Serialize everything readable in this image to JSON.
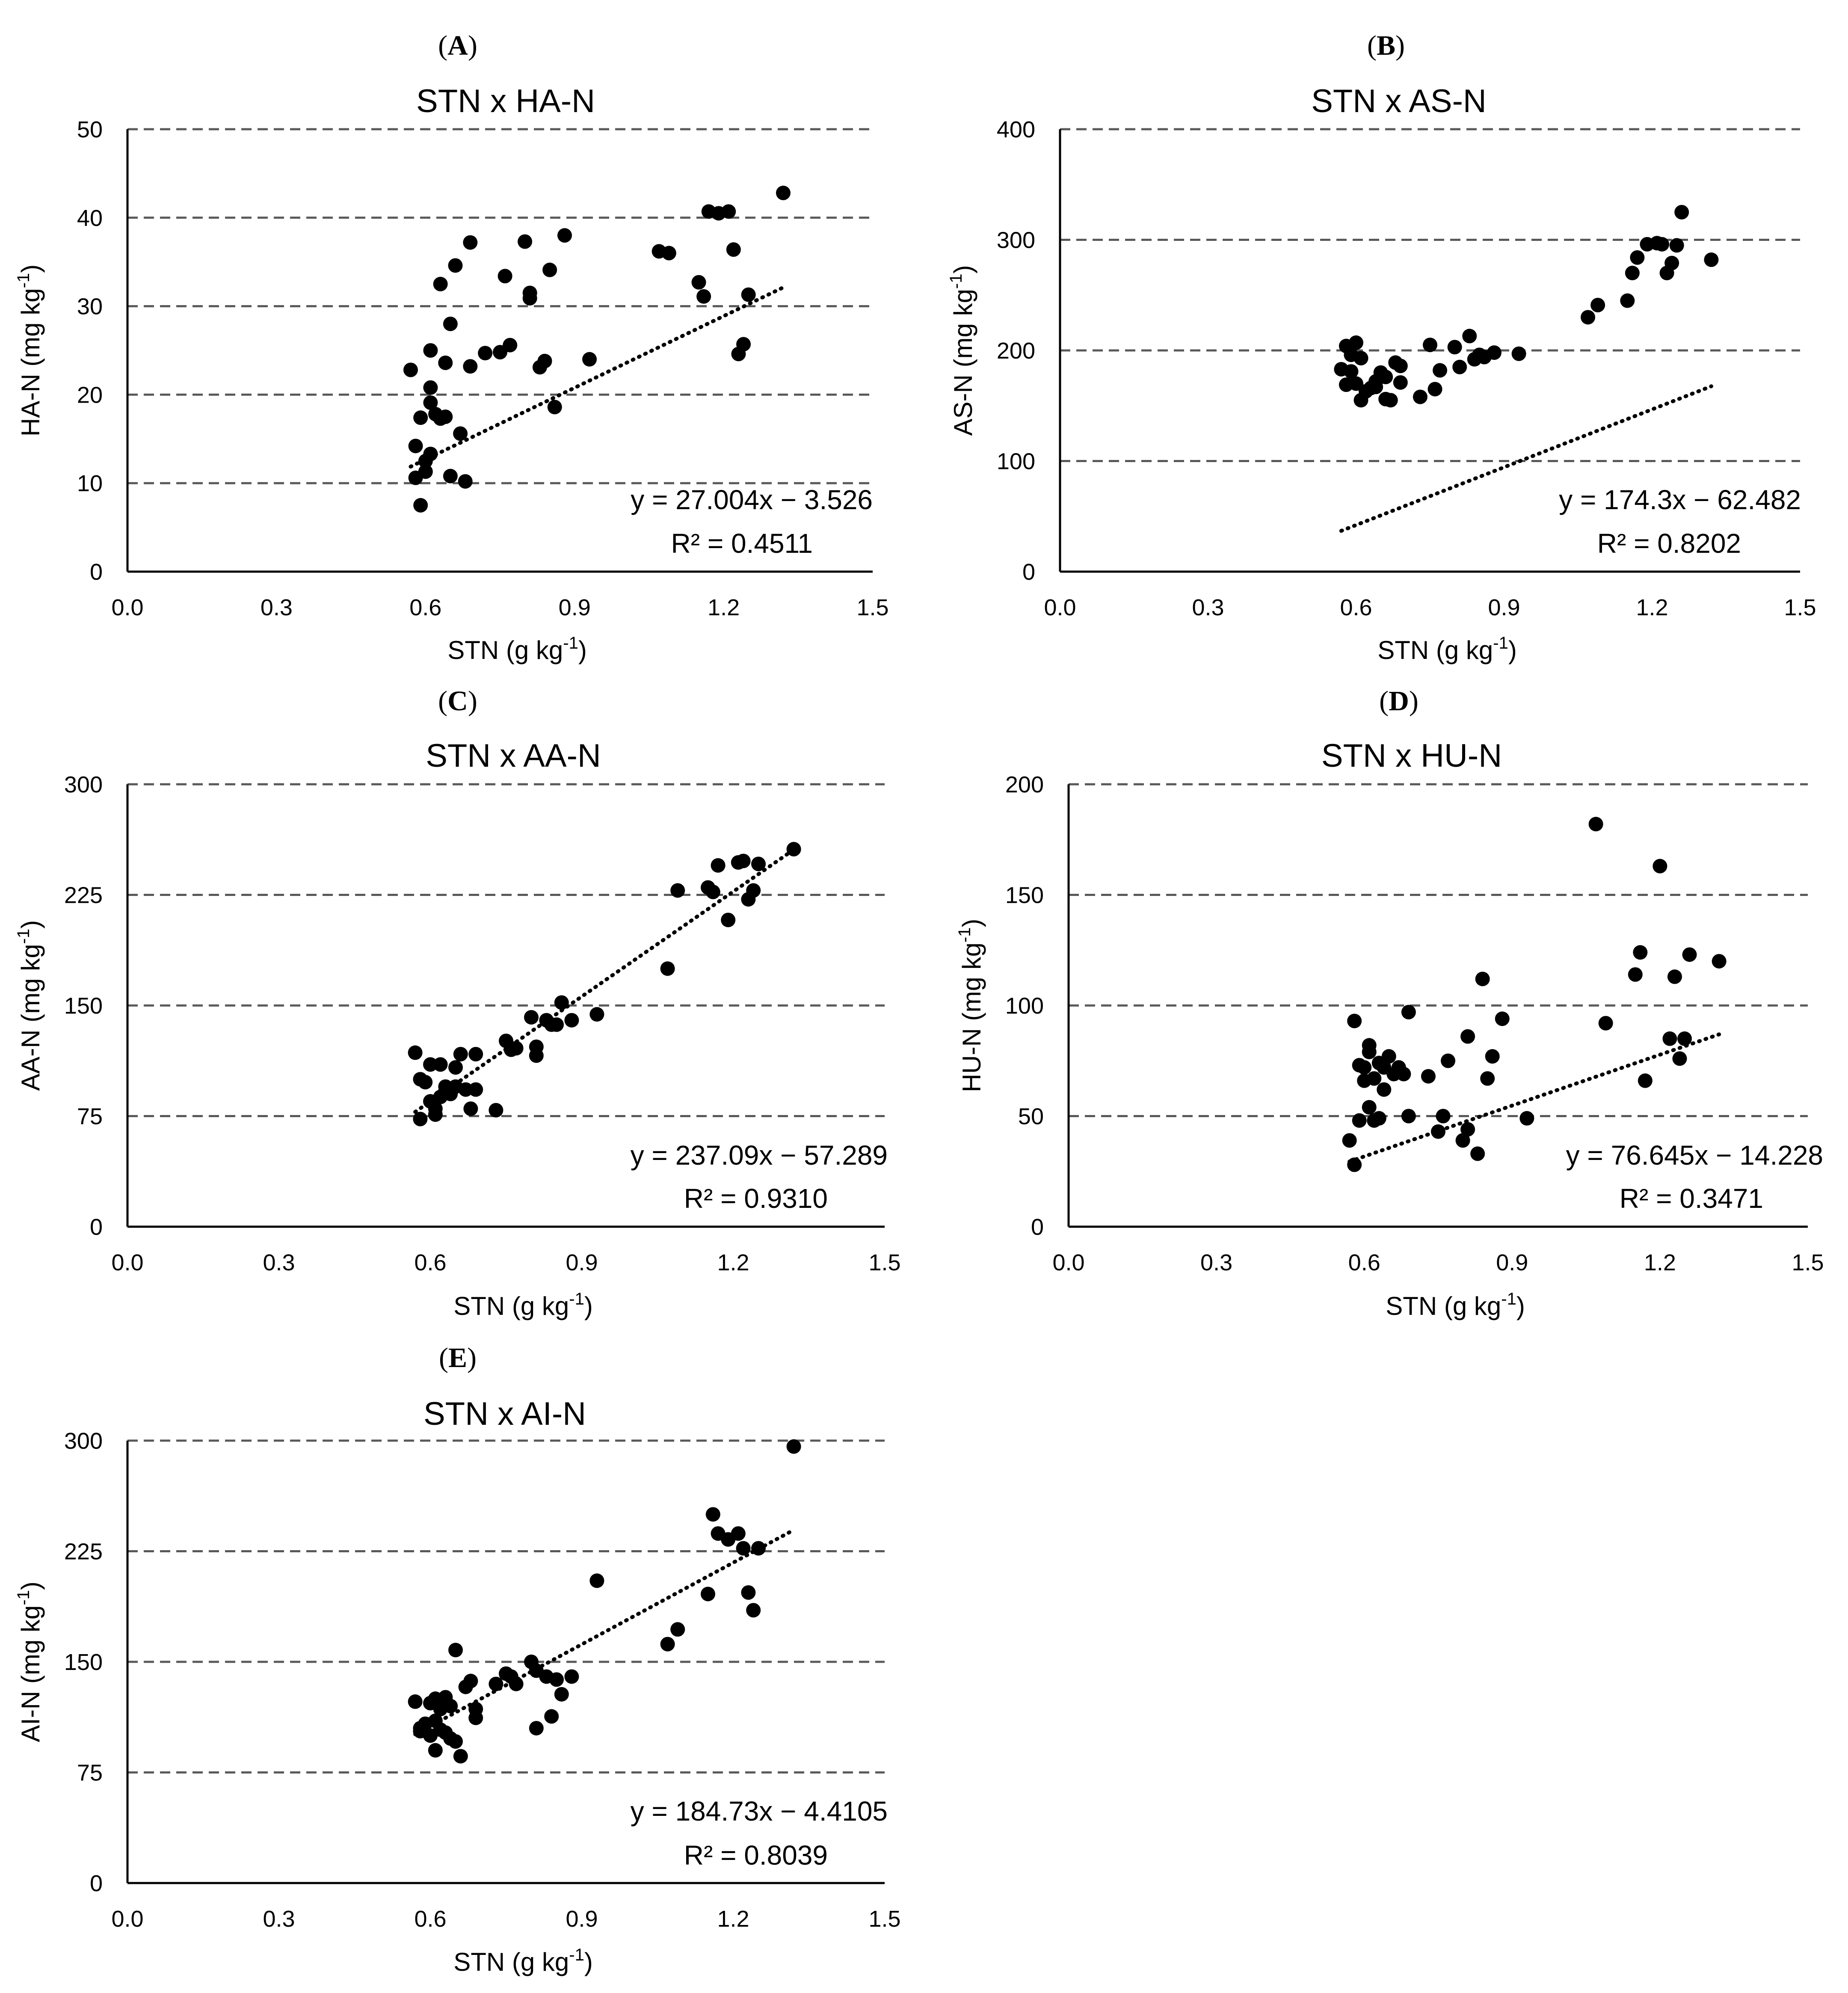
{
  "chart_data": [
    {
      "panel": "A",
      "type": "scatter",
      "title": "STN x HA-N",
      "xlabel": "STN (g kg",
      "xlabel_sup": "-1",
      "ylabel": "HA-N (mg kg",
      "ylabel_sup": "-1",
      "xlim": [
        0,
        1.5
      ],
      "ylim": [
        0,
        50
      ],
      "xticks": [
        "0.0",
        "0.3",
        "0.6",
        "0.9",
        "1.2",
        "1.5"
      ],
      "yticks": [
        "0",
        "10",
        "20",
        "30",
        "40",
        "50"
      ],
      "grid": true,
      "trendline": {
        "type": "linear",
        "slope": 27.004,
        "intercept": -3.526,
        "x_range": [
          0.57,
          1.32
        ]
      },
      "equation": "y = 27.004x − 3.526",
      "r2": "R² = 0.4511",
      "points": [
        [
          0.57,
          22.8
        ],
        [
          0.58,
          14.2
        ],
        [
          0.58,
          10.6
        ],
        [
          0.59,
          17.4
        ],
        [
          0.59,
          7.5
        ],
        [
          0.6,
          12.5
        ],
        [
          0.6,
          11.3
        ],
        [
          0.61,
          13.3
        ],
        [
          0.61,
          25.0
        ],
        [
          0.61,
          20.8
        ],
        [
          0.61,
          19.1
        ],
        [
          0.62,
          17.8
        ],
        [
          0.63,
          32.5
        ],
        [
          0.63,
          17.3
        ],
        [
          0.64,
          17.5
        ],
        [
          0.64,
          23.6
        ],
        [
          0.65,
          28.0
        ],
        [
          0.65,
          10.8
        ],
        [
          0.66,
          34.6
        ],
        [
          0.67,
          15.6
        ],
        [
          0.68,
          10.2
        ],
        [
          0.69,
          37.2
        ],
        [
          0.69,
          23.2
        ],
        [
          0.72,
          24.7
        ],
        [
          0.75,
          24.8
        ],
        [
          0.76,
          33.4
        ],
        [
          0.77,
          25.6
        ],
        [
          0.8,
          37.3
        ],
        [
          0.81,
          31.5
        ],
        [
          0.81,
          30.9
        ],
        [
          0.83,
          23.1
        ],
        [
          0.84,
          23.8
        ],
        [
          0.85,
          34.1
        ],
        [
          0.86,
          18.6
        ],
        [
          0.88,
          38.0
        ],
        [
          0.93,
          24.0
        ],
        [
          1.07,
          36.2
        ],
        [
          1.09,
          36.0
        ],
        [
          1.15,
          32.7
        ],
        [
          1.16,
          31.1
        ],
        [
          1.17,
          40.7
        ],
        [
          1.19,
          40.5
        ],
        [
          1.21,
          40.7
        ],
        [
          1.22,
          36.4
        ],
        [
          1.23,
          24.6
        ],
        [
          1.24,
          25.7
        ],
        [
          1.25,
          31.3
        ],
        [
          1.32,
          42.8
        ]
      ]
    },
    {
      "panel": "B",
      "type": "scatter",
      "title": "STN x AS-N",
      "xlabel": "STN (g kg",
      "xlabel_sup": "-1",
      "ylabel": "AS-N (mg kg",
      "ylabel_sup": "-1",
      "xlim": [
        0,
        1.5
      ],
      "ylim": [
        0,
        400
      ],
      "xticks": [
        "0.0",
        "0.3",
        "0.6",
        "0.9",
        "1.2",
        "1.5"
      ],
      "yticks": [
        "0",
        "100",
        "200",
        "300",
        "400"
      ],
      "grid": true,
      "trendline": {
        "type": "linear",
        "slope": 174.3,
        "intercept": -62.482,
        "x_range": [
          0.57,
          1.32
        ]
      },
      "equation": "y = 174.3x − 62.482",
      "r2": "R² = 0.8202",
      "points": [
        [
          0.57,
          183
        ],
        [
          0.58,
          204
        ],
        [
          0.58,
          169
        ],
        [
          0.59,
          181
        ],
        [
          0.59,
          196
        ],
        [
          0.6,
          207
        ],
        [
          0.6,
          170
        ],
        [
          0.61,
          193
        ],
        [
          0.61,
          155
        ],
        [
          0.62,
          163
        ],
        [
          0.63,
          166
        ],
        [
          0.64,
          172
        ],
        [
          0.64,
          167
        ],
        [
          0.65,
          180
        ],
        [
          0.66,
          176
        ],
        [
          0.66,
          156
        ],
        [
          0.67,
          155
        ],
        [
          0.68,
          189
        ],
        [
          0.69,
          186
        ],
        [
          0.69,
          171
        ],
        [
          0.73,
          158
        ],
        [
          0.75,
          205
        ],
        [
          0.76,
          165
        ],
        [
          0.77,
          182
        ],
        [
          0.8,
          203
        ],
        [
          0.81,
          185
        ],
        [
          0.83,
          213
        ],
        [
          0.84,
          192
        ],
        [
          0.85,
          196
        ],
        [
          0.86,
          194
        ],
        [
          0.88,
          198
        ],
        [
          0.93,
          197
        ],
        [
          1.07,
          230
        ],
        [
          1.09,
          241
        ],
        [
          1.15,
          245
        ],
        [
          1.16,
          270
        ],
        [
          1.17,
          284
        ],
        [
          1.19,
          296
        ],
        [
          1.21,
          297
        ],
        [
          1.22,
          296
        ],
        [
          1.23,
          270
        ],
        [
          1.24,
          279
        ],
        [
          1.25,
          295
        ],
        [
          1.26,
          325
        ],
        [
          1.32,
          282
        ]
      ]
    },
    {
      "panel": "C",
      "type": "scatter",
      "title": "STN x AA-N",
      "xlabel": "STN (g kg",
      "xlabel_sup": "-1",
      "ylabel": "AA-N (mg kg",
      "ylabel_sup": "-1",
      "xlim": [
        0,
        1.5
      ],
      "ylim": [
        0,
        300
      ],
      "xticks": [
        "0.0",
        "0.3",
        "0.6",
        "0.9",
        "1.2",
        "1.5"
      ],
      "yticks": [
        "0",
        "75",
        "150",
        "225",
        "300"
      ],
      "grid": true,
      "trendline": {
        "type": "linear",
        "slope": 237.09,
        "intercept": -57.289,
        "x_range": [
          0.57,
          1.32
        ]
      },
      "equation": "y = 237.09x − 57.289",
      "r2": "R² = 0.9310",
      "points": [
        [
          0.57,
          118
        ],
        [
          0.58,
          100
        ],
        [
          0.58,
          73
        ],
        [
          0.59,
          98
        ],
        [
          0.6,
          110
        ],
        [
          0.6,
          85
        ],
        [
          0.61,
          80
        ],
        [
          0.61,
          76
        ],
        [
          0.62,
          110
        ],
        [
          0.62,
          88
        ],
        [
          0.63,
          92
        ],
        [
          0.63,
          95
        ],
        [
          0.64,
          90
        ],
        [
          0.65,
          95
        ],
        [
          0.65,
          108
        ],
        [
          0.66,
          117
        ],
        [
          0.67,
          93
        ],
        [
          0.68,
          80
        ],
        [
          0.69,
          117
        ],
        [
          0.69,
          93
        ],
        [
          0.73,
          79
        ],
        [
          0.75,
          126
        ],
        [
          0.76,
          120
        ],
        [
          0.77,
          121
        ],
        [
          0.8,
          142
        ],
        [
          0.81,
          116
        ],
        [
          0.81,
          122
        ],
        [
          0.83,
          140
        ],
        [
          0.84,
          137
        ],
        [
          0.85,
          137
        ],
        [
          0.86,
          152
        ],
        [
          0.88,
          140
        ],
        [
          0.93,
          144
        ],
        [
          1.07,
          175
        ],
        [
          1.09,
          228
        ],
        [
          1.15,
          230
        ],
        [
          1.16,
          227
        ],
        [
          1.17,
          245
        ],
        [
          1.19,
          208
        ],
        [
          1.21,
          247
        ],
        [
          1.22,
          248
        ],
        [
          1.23,
          222
        ],
        [
          1.24,
          228
        ],
        [
          1.25,
          246
        ],
        [
          1.32,
          256
        ]
      ]
    },
    {
      "panel": "D",
      "type": "scatter",
      "title": "STN x HU-N",
      "xlabel": "STN (g kg",
      "xlabel_sup": "-1",
      "ylabel": "HU-N (mg kg",
      "ylabel_sup": "-1",
      "xlim": [
        0,
        1.5
      ],
      "ylim": [
        0,
        200
      ],
      "xticks": [
        "0.0",
        "0.3",
        "0.6",
        "0.9",
        "1.2",
        "1.5"
      ],
      "yticks": [
        "0",
        "50",
        "100",
        "150",
        "200"
      ],
      "grid": true,
      "trendline": {
        "type": "linear",
        "slope": 76.645,
        "intercept": -14.228,
        "x_range": [
          0.57,
          1.32
        ]
      },
      "equation": "y = 76.645x − 14.228",
      "r2": "R² = 0.3471",
      "points": [
        [
          0.57,
          39
        ],
        [
          0.58,
          28
        ],
        [
          0.58,
          93
        ],
        [
          0.59,
          73
        ],
        [
          0.59,
          48
        ],
        [
          0.6,
          72
        ],
        [
          0.6,
          66
        ],
        [
          0.61,
          82
        ],
        [
          0.61,
          79
        ],
        [
          0.61,
          54
        ],
        [
          0.62,
          48
        ],
        [
          0.62,
          67
        ],
        [
          0.63,
          74
        ],
        [
          0.63,
          49
        ],
        [
          0.64,
          72
        ],
        [
          0.64,
          62
        ],
        [
          0.65,
          77
        ],
        [
          0.66,
          69
        ],
        [
          0.67,
          72
        ],
        [
          0.68,
          69
        ],
        [
          0.69,
          97
        ],
        [
          0.69,
          50
        ],
        [
          0.73,
          68
        ],
        [
          0.75,
          43
        ],
        [
          0.76,
          50
        ],
        [
          0.77,
          75
        ],
        [
          0.8,
          39
        ],
        [
          0.81,
          44
        ],
        [
          0.81,
          86
        ],
        [
          0.83,
          33
        ],
        [
          0.84,
          112
        ],
        [
          0.85,
          67
        ],
        [
          0.86,
          77
        ],
        [
          0.88,
          94
        ],
        [
          0.93,
          49
        ],
        [
          1.07,
          182
        ],
        [
          1.09,
          92
        ],
        [
          1.15,
          114
        ],
        [
          1.16,
          124
        ],
        [
          1.17,
          66
        ],
        [
          1.2,
          163
        ],
        [
          1.22,
          85
        ],
        [
          1.23,
          113
        ],
        [
          1.24,
          76
        ],
        [
          1.25,
          85
        ],
        [
          1.26,
          123
        ],
        [
          1.32,
          120
        ]
      ]
    },
    {
      "panel": "E",
      "type": "scatter",
      "title": "STN x AI-N",
      "xlabel": "STN (g kg",
      "xlabel_sup": "-1",
      "ylabel": "AI-N (mg kg",
      "ylabel_sup": "-1",
      "xlim": [
        0,
        1.5
      ],
      "ylim": [
        0,
        300
      ],
      "xticks": [
        "0.0",
        "0.3",
        "0.6",
        "0.9",
        "1.2",
        "1.5"
      ],
      "yticks": [
        "0",
        "75",
        "150",
        "225",
        "300"
      ],
      "grid": true,
      "trendline": {
        "type": "linear",
        "slope": 184.73,
        "intercept": -4.4105,
        "x_range": [
          0.57,
          1.32
        ]
      },
      "equation": "y = 184.73x − 4.4105",
      "r2": "R² = 0.8039",
      "points": [
        [
          0.57,
          123
        ],
        [
          0.58,
          105
        ],
        [
          0.58,
          103
        ],
        [
          0.59,
          108
        ],
        [
          0.6,
          122
        ],
        [
          0.6,
          100
        ],
        [
          0.61,
          125
        ],
        [
          0.61,
          110
        ],
        [
          0.61,
          90
        ],
        [
          0.62,
          118
        ],
        [
          0.62,
          104
        ],
        [
          0.63,
          126
        ],
        [
          0.63,
          102
        ],
        [
          0.64,
          120
        ],
        [
          0.64,
          98
        ],
        [
          0.65,
          96
        ],
        [
          0.65,
          158
        ],
        [
          0.66,
          86
        ],
        [
          0.67,
          133
        ],
        [
          0.68,
          137
        ],
        [
          0.69,
          118
        ],
        [
          0.69,
          112
        ],
        [
          0.73,
          135
        ],
        [
          0.75,
          142
        ],
        [
          0.76,
          140
        ],
        [
          0.77,
          135
        ],
        [
          0.8,
          150
        ],
        [
          0.81,
          144
        ],
        [
          0.81,
          105
        ],
        [
          0.83,
          140
        ],
        [
          0.84,
          113
        ],
        [
          0.85,
          138
        ],
        [
          0.86,
          128
        ],
        [
          0.88,
          140
        ],
        [
          0.93,
          205
        ],
        [
          1.07,
          162
        ],
        [
          1.09,
          172
        ],
        [
          1.15,
          196
        ],
        [
          1.16,
          250
        ],
        [
          1.17,
          237
        ],
        [
          1.19,
          233
        ],
        [
          1.21,
          237
        ],
        [
          1.22,
          227
        ],
        [
          1.23,
          197
        ],
        [
          1.24,
          185
        ],
        [
          1.25,
          227
        ],
        [
          1.32,
          296
        ]
      ]
    }
  ]
}
